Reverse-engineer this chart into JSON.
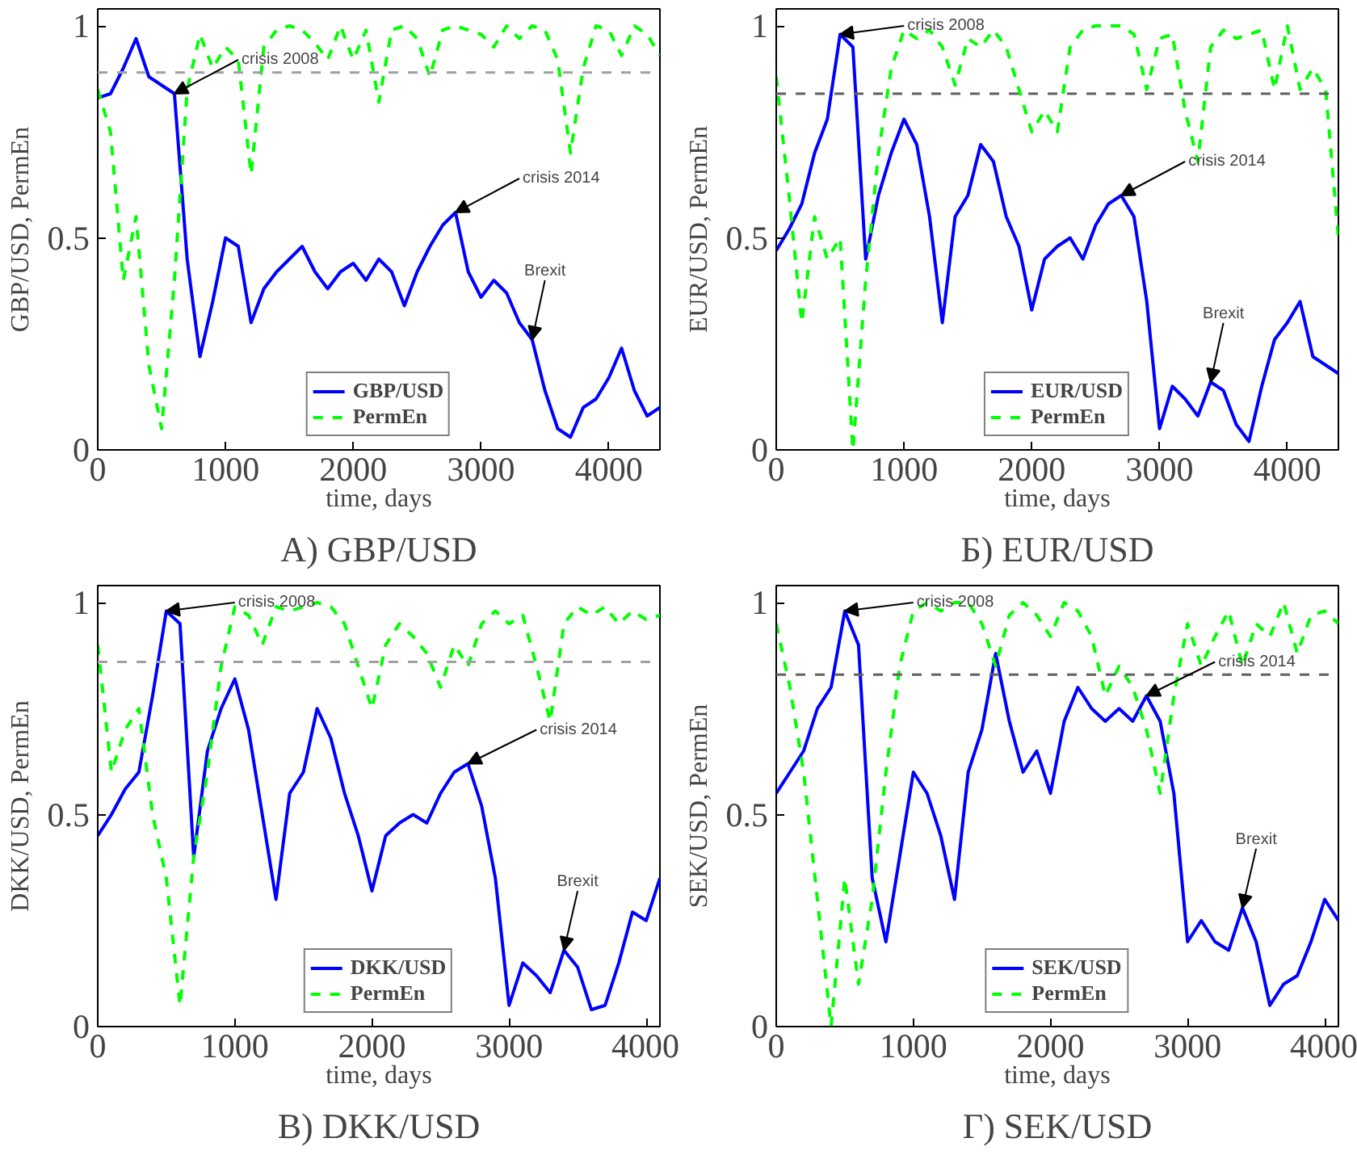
{
  "chart_data": [
    {
      "type": "line",
      "title": "А) GBP/USD",
      "xlabel": "time, days",
      "ylabel": "GBP/USD, PermEn",
      "xlim": [
        0,
        4400
      ],
      "ylim": [
        0,
        1.04
      ],
      "xticks": [
        0,
        1000,
        2000,
        3000,
        4000
      ],
      "yticks": [
        0,
        0.5,
        1
      ],
      "grid": false,
      "legend": "bottom",
      "marker": "none",
      "x": [
        0,
        100,
        200,
        300,
        400,
        500,
        600,
        700,
        800,
        900,
        1000,
        1100,
        1200,
        1300,
        1400,
        1500,
        1600,
        1700,
        1800,
        1900,
        2000,
        2100,
        2200,
        2300,
        2400,
        2500,
        2600,
        2700,
        2800,
        2900,
        3000,
        3100,
        3200,
        3300,
        3400,
        3500,
        3600,
        3700,
        3800,
        3900,
        4000,
        4100,
        4200,
        4300,
        4400
      ],
      "series": [
        {
          "name": "GBP/USD",
          "color": "#0000ff",
          "line_style": "solid",
          "values": [
            0.83,
            0.84,
            0.9,
            0.97,
            0.88,
            0.86,
            0.84,
            0.45,
            0.22,
            0.35,
            0.5,
            0.48,
            0.3,
            0.38,
            0.42,
            0.45,
            0.48,
            0.42,
            0.38,
            0.42,
            0.44,
            0.4,
            0.45,
            0.42,
            0.34,
            0.42,
            0.48,
            0.53,
            0.56,
            0.42,
            0.36,
            0.4,
            0.37,
            0.3,
            0.26,
            0.14,
            0.05,
            0.03,
            0.1,
            0.12,
            0.17,
            0.24,
            0.14,
            0.08,
            0.1
          ]
        },
        {
          "name": "PermEn",
          "color": "#00ff00",
          "line_style": "dashed",
          "values": [
            0.85,
            0.75,
            0.4,
            0.55,
            0.2,
            0.05,
            0.4,
            0.85,
            0.98,
            0.9,
            0.95,
            0.92,
            0.65,
            0.95,
            0.99,
            1,
            0.99,
            0.96,
            0.92,
            1,
            0.92,
            0.99,
            0.82,
            0.99,
            1,
            0.97,
            0.88,
            0.99,
            1,
            0.99,
            0.98,
            0.95,
            1,
            0.97,
            1,
            0.99,
            0.92,
            0.7,
            0.9,
            1,
            0.99,
            0.93,
            1,
            0.98,
            0.93
          ]
        }
      ],
      "ref_lines": [
        {
          "axis": "y",
          "value": 0.89,
          "color": "#a0a0a0",
          "line_style": "dashed"
        }
      ],
      "annotations": [
        {
          "text": "crisis 2008",
          "x": 600,
          "y": 0.84
        },
        {
          "text": "crisis 2014",
          "x": 2800,
          "y": 0.56
        },
        {
          "text": "Brexit",
          "x": 3400,
          "y": 0.26
        }
      ]
    },
    {
      "type": "line",
      "title": "Б) EUR/USD",
      "xlabel": "time, days",
      "ylabel": "EUR/USD, PermEn",
      "xlim": [
        0,
        4400
      ],
      "ylim": [
        0,
        1.04
      ],
      "xticks": [
        0,
        1000,
        2000,
        3000,
        4000
      ],
      "yticks": [
        0,
        0.5,
        1
      ],
      "grid": false,
      "legend": "bottom",
      "marker": "none",
      "x": [
        0,
        100,
        200,
        300,
        400,
        500,
        600,
        700,
        800,
        900,
        1000,
        1100,
        1200,
        1300,
        1400,
        1500,
        1600,
        1700,
        1800,
        1900,
        2000,
        2100,
        2200,
        2300,
        2400,
        2500,
        2600,
        2700,
        2800,
        2900,
        3000,
        3100,
        3200,
        3300,
        3400,
        3500,
        3600,
        3700,
        3800,
        3900,
        4000,
        4100,
        4200,
        4300,
        4400
      ],
      "series": [
        {
          "name": "EUR/USD",
          "color": "#0000ff",
          "line_style": "solid",
          "values": [
            0.47,
            0.52,
            0.58,
            0.7,
            0.78,
            0.98,
            0.95,
            0.45,
            0.6,
            0.7,
            0.78,
            0.72,
            0.55,
            0.3,
            0.55,
            0.6,
            0.72,
            0.68,
            0.55,
            0.48,
            0.33,
            0.45,
            0.48,
            0.5,
            0.45,
            0.53,
            0.58,
            0.6,
            0.55,
            0.35,
            0.05,
            0.15,
            0.12,
            0.08,
            0.16,
            0.14,
            0.06,
            0.02,
            0.15,
            0.26,
            0.3,
            0.35,
            0.22,
            0.2,
            0.18
          ]
        },
        {
          "name": "PermEn",
          "color": "#00ff00",
          "line_style": "dashed",
          "values": [
            0.88,
            0.6,
            0.3,
            0.55,
            0.45,
            0.5,
            0.0,
            0.4,
            0.7,
            0.9,
            0.99,
            0.97,
            0.99,
            0.95,
            0.86,
            0.97,
            0.95,
            0.99,
            0.95,
            0.85,
            0.75,
            0.8,
            0.75,
            0.95,
            0.99,
            1,
            1,
            1,
            0.98,
            0.85,
            0.97,
            0.98,
            0.8,
            0.68,
            0.95,
            0.99,
            0.97,
            0.98,
            0.99,
            0.85,
            1,
            0.85,
            0.9,
            0.85,
            0.5
          ]
        }
      ],
      "ref_lines": [
        {
          "axis": "y",
          "value": 0.84,
          "color": "#606060",
          "line_style": "dashed"
        }
      ],
      "annotations": [
        {
          "text": "crisis 2008",
          "x": 500,
          "y": 0.98
        },
        {
          "text": "crisis 2014",
          "x": 2700,
          "y": 0.6
        },
        {
          "text": "Brexit",
          "x": 3400,
          "y": 0.16
        }
      ]
    },
    {
      "type": "line",
      "title": "В) DKK/USD",
      "xlabel": "time, days",
      "ylabel": "DKK/USD, PermEn",
      "xlim": [
        0,
        4100
      ],
      "ylim": [
        0,
        1.04
      ],
      "xticks": [
        0,
        1000,
        2000,
        3000,
        4000
      ],
      "yticks": [
        0,
        0.5,
        1
      ],
      "grid": false,
      "legend": "bottom",
      "marker": "none",
      "x": [
        0,
        100,
        200,
        300,
        400,
        500,
        600,
        700,
        800,
        900,
        1000,
        1100,
        1200,
        1300,
        1400,
        1500,
        1600,
        1700,
        1800,
        1900,
        2000,
        2100,
        2200,
        2300,
        2400,
        2500,
        2600,
        2700,
        2800,
        2900,
        3000,
        3100,
        3200,
        3300,
        3400,
        3500,
        3600,
        3700,
        3800,
        3900,
        4000,
        4100
      ],
      "series": [
        {
          "name": "DKK/USD",
          "color": "#0000ff",
          "line_style": "solid",
          "values": [
            0.45,
            0.5,
            0.56,
            0.6,
            0.78,
            0.98,
            0.95,
            0.4,
            0.65,
            0.75,
            0.82,
            0.7,
            0.5,
            0.3,
            0.55,
            0.6,
            0.75,
            0.68,
            0.55,
            0.45,
            0.32,
            0.45,
            0.48,
            0.5,
            0.48,
            0.55,
            0.6,
            0.62,
            0.52,
            0.35,
            0.05,
            0.15,
            0.12,
            0.08,
            0.18,
            0.14,
            0.04,
            0.05,
            0.15,
            0.27,
            0.25,
            0.35
          ]
        },
        {
          "name": "PermEn",
          "color": "#00ff00",
          "line_style": "dashed",
          "values": [
            0.9,
            0.6,
            0.7,
            0.75,
            0.5,
            0.35,
            0.05,
            0.4,
            0.6,
            0.85,
            0.99,
            0.97,
            0.9,
            0.99,
            0.98,
            0.99,
            1,
            0.99,
            0.95,
            0.85,
            0.75,
            0.9,
            0.95,
            0.92,
            0.88,
            0.8,
            0.9,
            0.85,
            0.95,
            0.98,
            0.95,
            0.97,
            0.85,
            0.72,
            0.95,
            0.99,
            0.97,
            0.99,
            0.95,
            0.98,
            0.96,
            0.97
          ]
        }
      ],
      "ref_lines": [
        {
          "axis": "y",
          "value": 0.86,
          "color": "#a0a0a0",
          "line_style": "dashed"
        }
      ],
      "annotations": [
        {
          "text": "crisis 2008",
          "x": 500,
          "y": 0.98
        },
        {
          "text": "crisis 2014",
          "x": 2700,
          "y": 0.62
        },
        {
          "text": "Brexit",
          "x": 3400,
          "y": 0.18
        }
      ]
    },
    {
      "type": "line",
      "title": "Г) SEK/USD",
      "xlabel": "time, days",
      "ylabel": "SEK/USD, PermEn",
      "xlim": [
        0,
        4100
      ],
      "ylim": [
        0,
        1.04
      ],
      "xticks": [
        0,
        1000,
        2000,
        3000,
        4000
      ],
      "yticks": [
        0,
        0.5,
        1
      ],
      "grid": false,
      "legend": "bottom",
      "marker": "none",
      "x": [
        0,
        100,
        200,
        300,
        400,
        500,
        600,
        700,
        800,
        900,
        1000,
        1100,
        1200,
        1300,
        1400,
        1500,
        1600,
        1700,
        1800,
        1900,
        2000,
        2100,
        2200,
        2300,
        2400,
        2500,
        2600,
        2700,
        2800,
        2900,
        3000,
        3100,
        3200,
        3300,
        3400,
        3500,
        3600,
        3700,
        3800,
        3900,
        4000,
        4100
      ],
      "series": [
        {
          "name": "SEK/USD",
          "color": "#0000ff",
          "line_style": "solid",
          "values": [
            0.55,
            0.6,
            0.65,
            0.75,
            0.8,
            0.98,
            0.9,
            0.35,
            0.2,
            0.4,
            0.6,
            0.55,
            0.45,
            0.3,
            0.6,
            0.7,
            0.88,
            0.72,
            0.6,
            0.65,
            0.55,
            0.72,
            0.8,
            0.75,
            0.72,
            0.75,
            0.72,
            0.78,
            0.72,
            0.55,
            0.2,
            0.25,
            0.2,
            0.18,
            0.28,
            0.2,
            0.05,
            0.1,
            0.12,
            0.2,
            0.3,
            0.25
          ]
        },
        {
          "name": "PermEn",
          "color": "#00ff00",
          "line_style": "dashed",
          "values": [
            0.95,
            0.8,
            0.6,
            0.3,
            0.0,
            0.35,
            0.1,
            0.3,
            0.6,
            0.85,
            0.98,
            1,
            0.98,
            1,
            1,
            0.95,
            0.85,
            0.97,
            1,
            0.97,
            0.92,
            1,
            0.98,
            0.92,
            0.78,
            0.85,
            0.8,
            0.7,
            0.55,
            0.78,
            0.95,
            0.85,
            0.92,
            0.98,
            0.85,
            0.95,
            0.92,
            1,
            0.88,
            0.97,
            0.98,
            0.95
          ]
        }
      ],
      "ref_lines": [
        {
          "axis": "y",
          "value": 0.83,
          "color": "#606060",
          "line_style": "dashed"
        }
      ],
      "annotations": [
        {
          "text": "crisis 2008",
          "x": 500,
          "y": 0.98
        },
        {
          "text": "crisis 2014",
          "x": 2700,
          "y": 0.78
        },
        {
          "text": "Brexit",
          "x": 3400,
          "y": 0.28
        }
      ]
    }
  ]
}
